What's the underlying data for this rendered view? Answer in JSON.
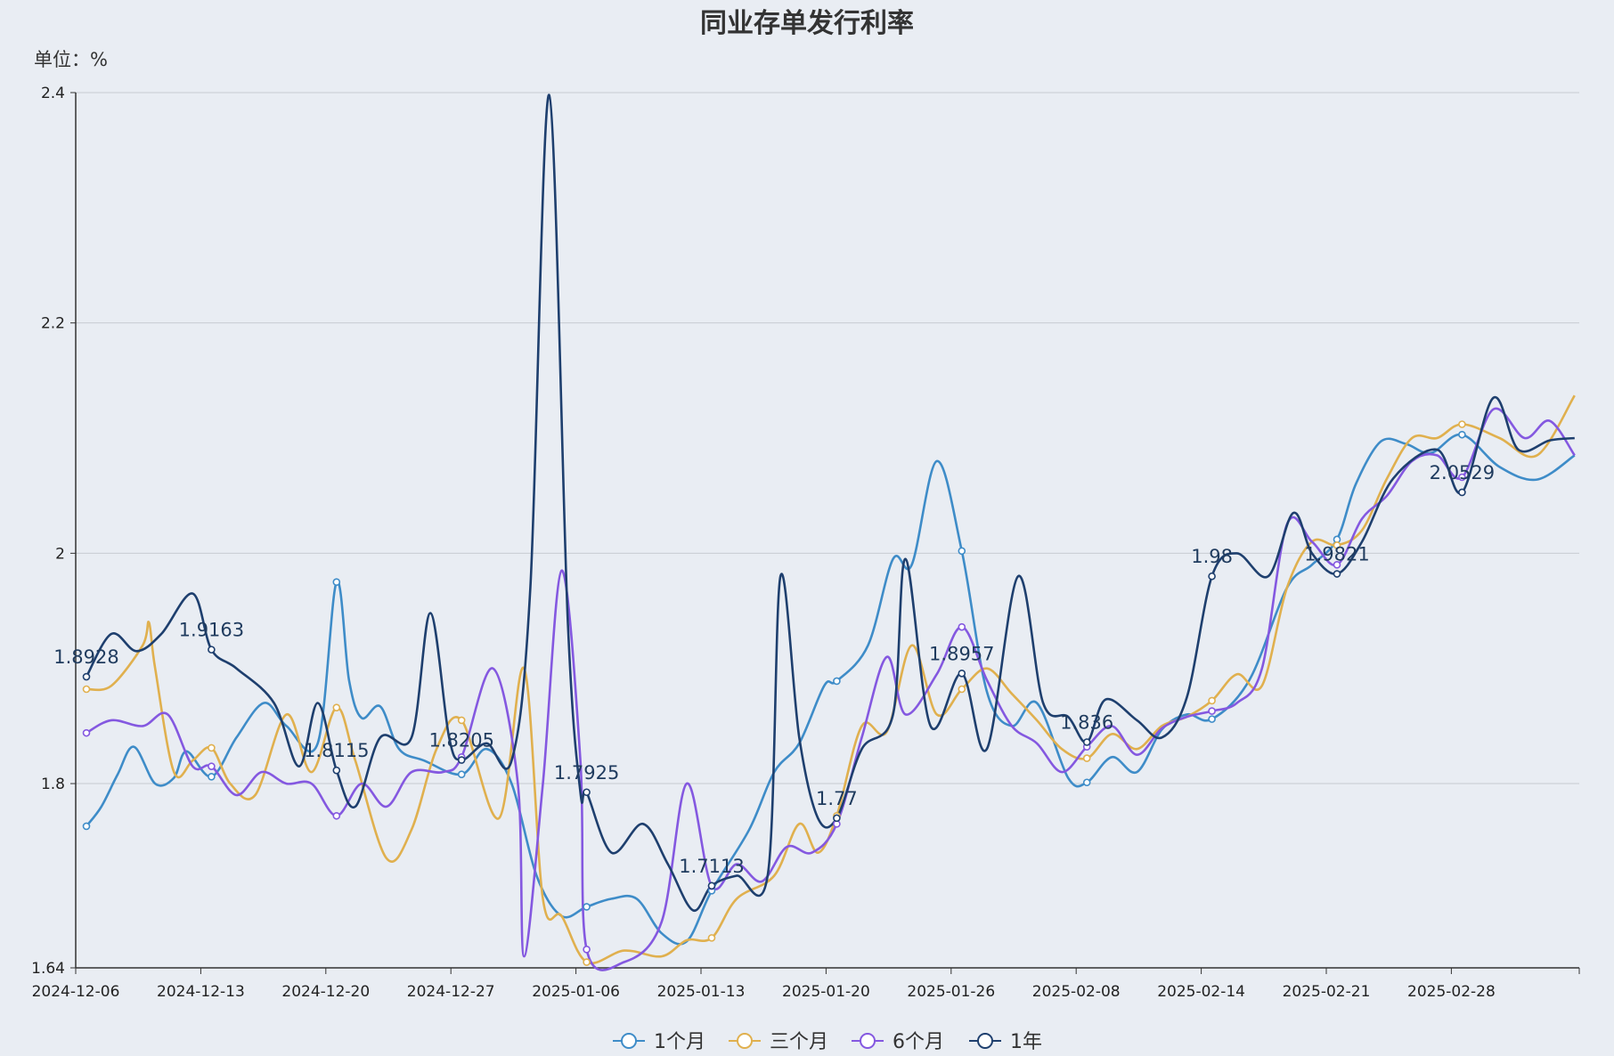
{
  "chart_data": {
    "type": "line",
    "title": "同业存单发行利率",
    "unit_label": "单位：%",
    "ylim": [
      1.64,
      2.4
    ],
    "y_ticks": [
      1.64,
      1.8,
      2,
      2.2,
      2.4
    ],
    "y_tick_labels": [
      "1.64",
      "1.8",
      "2",
      "2.2",
      "2.4"
    ],
    "x_tick_labels": [
      "2024-12-06",
      "2024-12-13",
      "2024-12-20",
      "2024-12-27",
      "2025-01-06",
      "2025-01-13",
      "2025-01-20",
      "2025-01-26",
      "2025-02-08",
      "2025-02-14",
      "2025-02-21",
      "2025-02-28"
    ],
    "grid": true,
    "legend_position": "bottom-center",
    "series": [
      {
        "name": "1个月",
        "color": "#3e8cc8",
        "marker_points": [
          [
            0,
            1.763
          ],
          [
            1,
            1.806
          ],
          [
            2,
            1.975
          ],
          [
            3,
            1.808
          ],
          [
            4,
            1.693
          ],
          [
            5,
            1.707
          ],
          [
            6,
            1.889
          ],
          [
            7,
            2.002
          ],
          [
            8,
            1.801
          ],
          [
            9,
            1.856
          ],
          [
            10,
            2.012
          ],
          [
            11,
            2.103
          ]
        ],
        "values": [
          [
            0,
            1.763
          ],
          [
            0.12,
            1.78
          ],
          [
            0.25,
            1.808
          ],
          [
            0.38,
            1.832
          ],
          [
            0.55,
            1.8
          ],
          [
            0.7,
            1.805
          ],
          [
            0.8,
            1.828
          ],
          [
            1.0,
            1.806
          ],
          [
            1.2,
            1.84
          ],
          [
            1.42,
            1.87
          ],
          [
            1.6,
            1.85
          ],
          [
            1.85,
            1.835
          ],
          [
            2.0,
            1.975
          ],
          [
            2.1,
            1.89
          ],
          [
            2.2,
            1.857
          ],
          [
            2.35,
            1.867
          ],
          [
            2.5,
            1.83
          ],
          [
            2.7,
            1.82
          ],
          [
            3.0,
            1.808
          ],
          [
            3.2,
            1.83
          ],
          [
            3.4,
            1.8
          ],
          [
            3.6,
            1.72
          ],
          [
            3.8,
            1.685
          ],
          [
            4.0,
            1.693
          ],
          [
            4.2,
            1.7
          ],
          [
            4.4,
            1.7
          ],
          [
            4.6,
            1.67
          ],
          [
            4.8,
            1.663
          ],
          [
            5.0,
            1.707
          ],
          [
            5.3,
            1.76
          ],
          [
            5.5,
            1.81
          ],
          [
            5.7,
            1.835
          ],
          [
            5.9,
            1.885
          ],
          [
            6.0,
            1.889
          ],
          [
            6.25,
            1.92
          ],
          [
            6.45,
            1.995
          ],
          [
            6.6,
            1.99
          ],
          [
            6.8,
            2.08
          ],
          [
            7.0,
            2.002
          ],
          [
            7.2,
            1.88
          ],
          [
            7.4,
            1.85
          ],
          [
            7.6,
            1.87
          ],
          [
            7.85,
            1.805
          ],
          [
            8.0,
            1.801
          ],
          [
            8.2,
            1.823
          ],
          [
            8.4,
            1.81
          ],
          [
            8.6,
            1.847
          ],
          [
            8.8,
            1.86
          ],
          [
            9.0,
            1.856
          ],
          [
            9.3,
            1.89
          ],
          [
            9.6,
            1.97
          ],
          [
            9.8,
            1.99
          ],
          [
            10.0,
            2.012
          ],
          [
            10.15,
            2.06
          ],
          [
            10.35,
            2.097
          ],
          [
            10.55,
            2.095
          ],
          [
            10.75,
            2.087
          ],
          [
            11.0,
            2.103
          ],
          [
            11.3,
            2.075
          ],
          [
            11.6,
            2.064
          ],
          [
            11.9,
            2.085
          ]
        ]
      },
      {
        "name": "三个月",
        "color": "#e0b04e",
        "marker_points": [
          [
            0,
            1.882
          ],
          [
            1,
            1.831
          ],
          [
            2,
            1.866
          ],
          [
            3,
            1.855
          ],
          [
            4,
            1.645
          ],
          [
            5,
            1.666
          ],
          [
            6,
            1.772
          ],
          [
            7,
            1.882
          ],
          [
            8,
            1.822
          ],
          [
            9,
            1.872
          ],
          [
            10,
            2.007
          ],
          [
            11,
            2.112
          ]
        ],
        "values": [
          [
            0,
            1.882
          ],
          [
            0.2,
            1.885
          ],
          [
            0.45,
            1.92
          ],
          [
            0.5,
            1.94
          ],
          [
            0.55,
            1.9
          ],
          [
            0.7,
            1.81
          ],
          [
            0.85,
            1.82
          ],
          [
            1.0,
            1.831
          ],
          [
            1.15,
            1.8
          ],
          [
            1.35,
            1.79
          ],
          [
            1.6,
            1.86
          ],
          [
            1.8,
            1.81
          ],
          [
            2.0,
            1.866
          ],
          [
            2.15,
            1.82
          ],
          [
            2.4,
            1.735
          ],
          [
            2.6,
            1.76
          ],
          [
            2.8,
            1.83
          ],
          [
            3.0,
            1.855
          ],
          [
            3.3,
            1.77
          ],
          [
            3.5,
            1.9
          ],
          [
            3.65,
            1.7
          ],
          [
            3.8,
            1.685
          ],
          [
            4.0,
            1.645
          ],
          [
            4.3,
            1.655
          ],
          [
            4.6,
            1.65
          ],
          [
            4.8,
            1.664
          ],
          [
            5.0,
            1.666
          ],
          [
            5.2,
            1.7
          ],
          [
            5.5,
            1.72
          ],
          [
            5.7,
            1.765
          ],
          [
            5.85,
            1.74
          ],
          [
            6.0,
            1.772
          ],
          [
            6.2,
            1.85
          ],
          [
            6.4,
            1.845
          ],
          [
            6.6,
            1.92
          ],
          [
            6.8,
            1.86
          ],
          [
            7.0,
            1.882
          ],
          [
            7.2,
            1.9
          ],
          [
            7.4,
            1.878
          ],
          [
            7.6,
            1.855
          ],
          [
            7.8,
            1.83
          ],
          [
            8.0,
            1.822
          ],
          [
            8.2,
            1.843
          ],
          [
            8.4,
            1.83
          ],
          [
            8.6,
            1.85
          ],
          [
            8.8,
            1.858
          ],
          [
            9.0,
            1.872
          ],
          [
            9.2,
            1.895
          ],
          [
            9.4,
            1.885
          ],
          [
            9.6,
            1.97
          ],
          [
            9.8,
            2.01
          ],
          [
            10.0,
            2.007
          ],
          [
            10.2,
            2.02
          ],
          [
            10.4,
            2.065
          ],
          [
            10.6,
            2.1
          ],
          [
            10.8,
            2.1
          ],
          [
            11.0,
            2.112
          ],
          [
            11.3,
            2.1
          ],
          [
            11.6,
            2.085
          ],
          [
            11.9,
            2.137
          ]
        ]
      },
      {
        "name": "6个月",
        "color": "#8458e0",
        "marker_points": [
          [
            0,
            1.844
          ],
          [
            1,
            1.815
          ],
          [
            2,
            1.772
          ],
          [
            3,
            1.823
          ],
          [
            4,
            1.656
          ],
          [
            5,
            1.711
          ],
          [
            6,
            1.765
          ],
          [
            7,
            1.936
          ],
          [
            8,
            1.832
          ],
          [
            9,
            1.863
          ],
          [
            10,
            1.99
          ],
          [
            11,
            2.066
          ]
        ],
        "values": [
          [
            0,
            1.844
          ],
          [
            0.2,
            1.855
          ],
          [
            0.45,
            1.85
          ],
          [
            0.65,
            1.86
          ],
          [
            0.85,
            1.815
          ],
          [
            1.0,
            1.815
          ],
          [
            1.2,
            1.79
          ],
          [
            1.4,
            1.81
          ],
          [
            1.6,
            1.8
          ],
          [
            1.8,
            1.8
          ],
          [
            2.0,
            1.772
          ],
          [
            2.2,
            1.8
          ],
          [
            2.4,
            1.78
          ],
          [
            2.6,
            1.81
          ],
          [
            2.85,
            1.81
          ],
          [
            3.0,
            1.823
          ],
          [
            3.25,
            1.9
          ],
          [
            3.45,
            1.8
          ],
          [
            3.5,
            1.65
          ],
          [
            3.65,
            1.8
          ],
          [
            3.8,
            1.985
          ],
          [
            3.95,
            1.82
          ],
          [
            4.0,
            1.656
          ],
          [
            4.3,
            1.645
          ],
          [
            4.6,
            1.68
          ],
          [
            4.8,
            1.8
          ],
          [
            5.0,
            1.711
          ],
          [
            5.2,
            1.73
          ],
          [
            5.4,
            1.715
          ],
          [
            5.6,
            1.745
          ],
          [
            5.8,
            1.74
          ],
          [
            6.0,
            1.765
          ],
          [
            6.2,
            1.84
          ],
          [
            6.4,
            1.91
          ],
          [
            6.55,
            1.86
          ],
          [
            6.8,
            1.895
          ],
          [
            7.0,
            1.936
          ],
          [
            7.2,
            1.89
          ],
          [
            7.4,
            1.85
          ],
          [
            7.6,
            1.835
          ],
          [
            7.8,
            1.81
          ],
          [
            8.0,
            1.832
          ],
          [
            8.2,
            1.85
          ],
          [
            8.4,
            1.825
          ],
          [
            8.6,
            1.848
          ],
          [
            8.8,
            1.858
          ],
          [
            9.0,
            1.863
          ],
          [
            9.2,
            1.87
          ],
          [
            9.4,
            1.9
          ],
          [
            9.6,
            2.025
          ],
          [
            9.8,
            2.01
          ],
          [
            10.0,
            1.99
          ],
          [
            10.2,
            2.03
          ],
          [
            10.4,
            2.05
          ],
          [
            10.6,
            2.08
          ],
          [
            10.8,
            2.085
          ],
          [
            11.0,
            2.066
          ],
          [
            11.25,
            2.125
          ],
          [
            11.5,
            2.1
          ],
          [
            11.7,
            2.115
          ],
          [
            11.9,
            2.085
          ]
        ]
      },
      {
        "name": "1年",
        "color": "#1e3f6e",
        "marker_points": [
          [
            0,
            1.8928
          ],
          [
            1,
            1.9163
          ],
          [
            2,
            1.8115
          ],
          [
            3,
            1.8205
          ],
          [
            4,
            1.7925
          ],
          [
            5,
            1.7113
          ],
          [
            6,
            1.77
          ],
          [
            7,
            1.8957
          ],
          [
            8,
            1.836
          ],
          [
            9,
            1.98
          ],
          [
            10,
            1.9821
          ],
          [
            11,
            2.0529
          ]
        ],
        "values": [
          [
            0,
            1.8928
          ],
          [
            0.2,
            1.93
          ],
          [
            0.4,
            1.915
          ],
          [
            0.6,
            1.93
          ],
          [
            0.85,
            1.965
          ],
          [
            1.0,
            1.9163
          ],
          [
            1.2,
            1.9
          ],
          [
            1.5,
            1.87
          ],
          [
            1.7,
            1.815
          ],
          [
            1.85,
            1.87
          ],
          [
            2.0,
            1.8115
          ],
          [
            2.15,
            1.78
          ],
          [
            2.35,
            1.84
          ],
          [
            2.6,
            1.84
          ],
          [
            2.75,
            1.948
          ],
          [
            2.9,
            1.84
          ],
          [
            3.0,
            1.8205
          ],
          [
            3.2,
            1.835
          ],
          [
            3.4,
            1.82
          ],
          [
            3.55,
            1.97
          ],
          [
            3.7,
            2.398
          ],
          [
            3.85,
            1.94
          ],
          [
            3.95,
            1.7925
          ],
          [
            4.0,
            1.7925
          ],
          [
            4.2,
            1.74
          ],
          [
            4.45,
            1.765
          ],
          [
            4.65,
            1.73
          ],
          [
            4.85,
            1.69
          ],
          [
            5.0,
            1.7113
          ],
          [
            5.2,
            1.72
          ],
          [
            5.45,
            1.722
          ],
          [
            5.55,
            1.98
          ],
          [
            5.7,
            1.84
          ],
          [
            5.85,
            1.77
          ],
          [
            6.0,
            1.77
          ],
          [
            6.2,
            1.83
          ],
          [
            6.45,
            1.86
          ],
          [
            6.55,
            1.995
          ],
          [
            6.75,
            1.85
          ],
          [
            7.0,
            1.8957
          ],
          [
            7.2,
            1.83
          ],
          [
            7.45,
            1.98
          ],
          [
            7.65,
            1.87
          ],
          [
            7.85,
            1.858
          ],
          [
            8.0,
            1.836
          ],
          [
            8.15,
            1.873
          ],
          [
            8.4,
            1.855
          ],
          [
            8.6,
            1.84
          ],
          [
            8.8,
            1.875
          ],
          [
            9.0,
            1.98
          ],
          [
            9.2,
            2.0
          ],
          [
            9.45,
            1.98
          ],
          [
            9.65,
            2.035
          ],
          [
            9.8,
            2.0
          ],
          [
            10.0,
            1.9821
          ],
          [
            10.2,
            2.01
          ],
          [
            10.45,
            2.065
          ],
          [
            10.8,
            2.09
          ],
          [
            11.0,
            2.0529
          ],
          [
            11.25,
            2.135
          ],
          [
            11.45,
            2.09
          ],
          [
            11.7,
            2.098
          ],
          [
            11.9,
            2.1
          ]
        ]
      }
    ],
    "data_labels": [
      "1.8928",
      "1.9163",
      "1.8115",
      "1.8205",
      "1.7925",
      "1.7113",
      "1.77",
      "1.8957",
      "1.836",
      "1.98",
      "1.9821",
      "2.0529"
    ]
  }
}
